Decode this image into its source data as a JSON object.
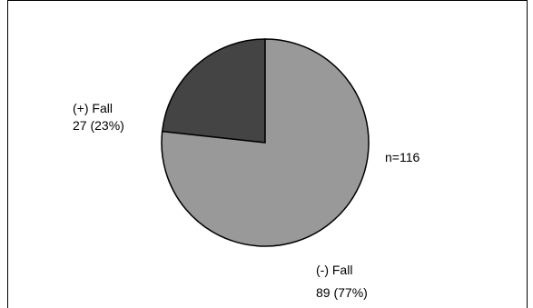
{
  "chart_data": {
    "type": "pie",
    "title": "",
    "annotation": "n=116",
    "slices": [
      {
        "label": "(+) Fall",
        "value": 27,
        "value_text": "27 (23%)",
        "color": "#444444"
      },
      {
        "label": "(-) Fall",
        "value": 89,
        "value_text": "89 (77%)",
        "color": "#999999"
      }
    ],
    "legend": "none"
  }
}
